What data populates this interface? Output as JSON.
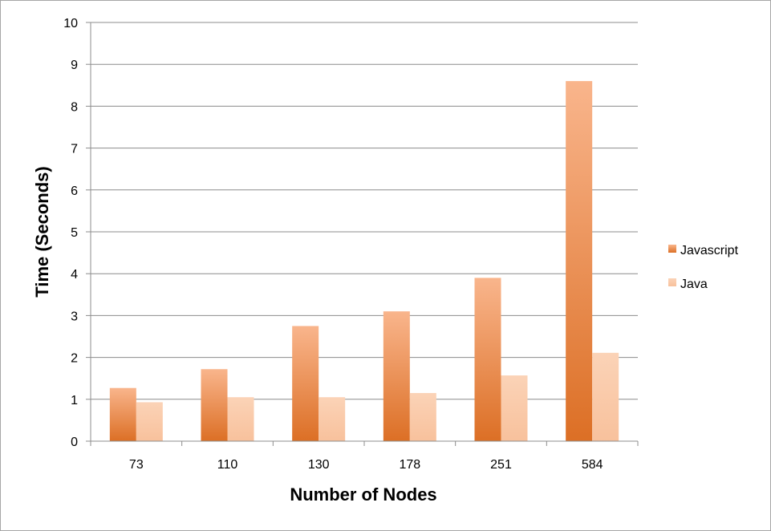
{
  "chart_data": {
    "type": "bar",
    "title": "",
    "xlabel": "Number of Nodes",
    "ylabel": "Time (Seconds)",
    "categories": [
      "73",
      "110",
      "130",
      "178",
      "251",
      "584"
    ],
    "series": [
      {
        "name": "Javascript",
        "values": [
          1.27,
          1.72,
          2.75,
          3.1,
          3.9,
          8.6
        ],
        "color": "#e07a34"
      },
      {
        "name": "Java",
        "values": [
          0.93,
          1.05,
          1.05,
          1.15,
          1.57,
          2.11
        ],
        "color": "#f9c7a4"
      }
    ],
    "ylim": [
      0,
      10
    ],
    "yticks": [
      "0",
      "1",
      "2",
      "3",
      "4",
      "5",
      "6",
      "7",
      "8",
      "9",
      "10"
    ],
    "grid": true,
    "legend_position": "right"
  }
}
